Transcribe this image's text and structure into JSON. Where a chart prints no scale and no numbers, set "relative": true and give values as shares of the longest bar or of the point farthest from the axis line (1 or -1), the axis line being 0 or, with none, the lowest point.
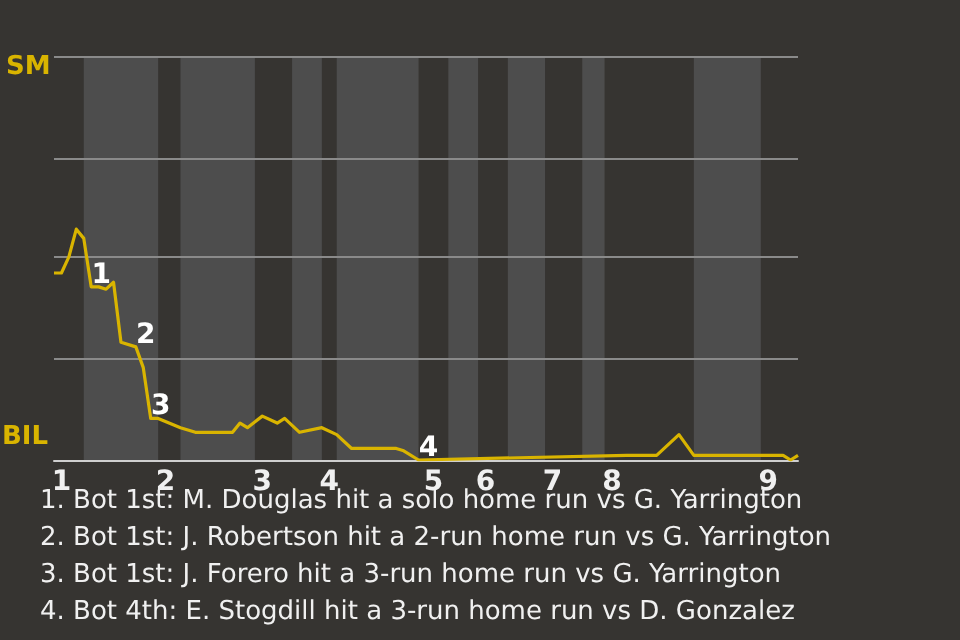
{
  "chart_data": {
    "type": "line",
    "relative": true,
    "categories": [
      null,
      "1",
      null,
      null,
      null,
      null,
      null,
      null,
      null,
      null,
      null,
      null,
      null,
      null,
      null,
      "2",
      null,
      null,
      null,
      null,
      null,
      null,
      null,
      null,
      null,
      null,
      null,
      null,
      "3",
      null,
      null,
      null,
      null,
      null,
      null,
      null,
      null,
      "4",
      null,
      null,
      null,
      null,
      null,
      null,
      null,
      null,
      null,
      null,
      null,
      null,
      null,
      "5",
      null,
      null,
      null,
      null,
      null,
      null,
      "6",
      null,
      null,
      null,
      null,
      null,
      null,
      null,
      null,
      "7",
      null,
      null,
      null,
      null,
      null,
      null,
      null,
      "8",
      null,
      null,
      null,
      null,
      null,
      null,
      null,
      null,
      null,
      null,
      null,
      null,
      null,
      null,
      null,
      null,
      null,
      null,
      null,
      null,
      "9",
      null,
      null,
      null,
      null
    ],
    "series": [
      {
        "color": "#d9b400",
        "values": [
          0.81,
          0.81,
          0.88,
          1,
          0.96,
          0.75,
          0.75,
          0.74,
          0.77,
          0.51,
          null,
          0.49,
          0.4,
          0.18,
          0.18,
          null,
          null,
          0.14,
          null,
          0.12,
          null,
          null,
          null,
          null,
          0.12,
          0.16,
          0.14,
          null,
          0.19,
          null,
          0.16,
          0.18,
          null,
          0.12,
          null,
          null,
          0.14,
          null,
          0.11,
          null,
          0.05,
          null,
          null,
          null,
          null,
          null,
          0.05,
          0.04,
          null,
          0,
          null,
          null,
          null,
          null,
          null,
          null,
          null,
          null,
          null,
          null,
          null,
          null,
          null,
          null,
          null,
          null,
          null,
          null,
          null,
          null,
          null,
          null,
          null,
          null,
          null,
          null,
          null,
          0.02,
          null,
          null,
          null,
          0.02,
          null,
          null,
          0.11,
          null,
          0.02,
          null,
          null,
          null,
          null,
          null,
          null,
          null,
          null,
          0.02,
          0.02,
          null,
          0.02,
          0,
          0.02
        ]
      }
    ],
    "marker": "none",
    "ref_lines": [
      {
        "axis": "y",
        "value": 0.4375,
        "color": "#8a8a8a"
      },
      {
        "axis": "y",
        "value": 0.875,
        "color": "#8a8a8a"
      },
      {
        "axis": "y",
        "value": 1.3125,
        "color": "#8a8a8a"
      },
      {
        "axis": "y",
        "value": 1.75,
        "color": "#8a8a8a"
      }
    ],
    "annotations": [
      "SM",
      "BIL",
      {
        "text": "1",
        "y": 0.75
      },
      {
        "text": "2",
        "y": 0.49
      },
      {
        "text": "3",
        "y": 0.18
      },
      {
        "text": "4",
        "y": 0
      },
      "1. Bot 1st: M. Douglas hit a solo home run vs G. Yarrington",
      "2. Bot 1st: J. Robertson hit a 2-run home run vs G. Yarrington",
      "3. Bot 1st: J. Forero hit a 3-run home run vs G. Yarrington",
      "4. Bot 4th: E. Stogdill hit a 3-run home run vs D. Gonzalez"
    ]
  }
}
